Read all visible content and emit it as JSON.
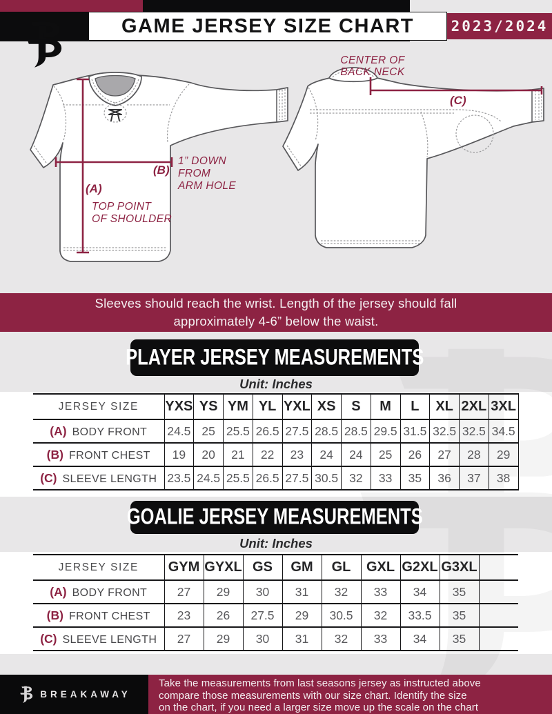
{
  "header": {
    "title": "GAME JERSEY SIZE CHART",
    "season": "2023/2024"
  },
  "diagram": {
    "front": {
      "a_label": "(A)",
      "a_note": [
        "TOP POINT",
        "OF SHOULDER"
      ],
      "b_label": "(B)",
      "b_note": [
        "1” DOWN",
        "FROM",
        "ARM HOLE"
      ]
    },
    "back": {
      "c_label": "(C)",
      "neck_note": [
        "CENTER OF",
        "BACK NECK"
      ]
    }
  },
  "notice": [
    "Sleeves should reach the wrist. Length of the jersey should fall",
    "approximately 4-6” below the waist."
  ],
  "player_section": {
    "title": "PLAYER JERSEY MEASUREMENTS",
    "unit": "Unit: Inches"
  },
  "goalie_section": {
    "title": "GOALIE JERSEY MEASUREMENTS",
    "unit": "Unit: Inches"
  },
  "player_table": {
    "corner_label": "JERSEY SIZE",
    "sizes": [
      "YXS",
      "YS",
      "YM",
      "YL",
      "YXL",
      "XS",
      "S",
      "M",
      "L",
      "XL",
      "2XL",
      "3XL"
    ],
    "rows": [
      {
        "key": "(A)",
        "label": "BODY FRONT",
        "values": [
          "24.5",
          "25",
          "25.5",
          "26.5",
          "27.5",
          "28.5",
          "28.5",
          "29.5",
          "31.5",
          "32.5",
          "32.5",
          "34.5"
        ]
      },
      {
        "key": "(B)",
        "label": "FRONT CHEST",
        "values": [
          "19",
          "20",
          "21",
          "22",
          "23",
          "24",
          "24",
          "25",
          "26",
          "27",
          "28",
          "29"
        ]
      },
      {
        "key": "(C)",
        "label": "SLEEVE LENGTH",
        "values": [
          "23.5",
          "24.5",
          "25.5",
          "26.5",
          "27.5",
          "30.5",
          "32",
          "33",
          "35",
          "36",
          "37",
          "38"
        ]
      }
    ]
  },
  "goalie_table": {
    "corner_label": "JERSEY SIZE",
    "sizes": [
      "GYM",
      "GYXL",
      "GS",
      "GM",
      "GL",
      "GXL",
      "G2XL",
      "G3XL",
      ""
    ],
    "rows": [
      {
        "key": "(A)",
        "label": "BODY FRONT",
        "values": [
          "27",
          "29",
          "30",
          "31",
          "32",
          "33",
          "34",
          "35",
          ""
        ]
      },
      {
        "key": "(B)",
        "label": "FRONT CHEST",
        "values": [
          "23",
          "26",
          "27.5",
          "29",
          "30.5",
          "32",
          "33.5",
          "35",
          ""
        ]
      },
      {
        "key": "(C)",
        "label": "SLEEVE LENGTH",
        "values": [
          "27",
          "29",
          "30",
          "31",
          "32",
          "33",
          "34",
          "35",
          ""
        ]
      }
    ]
  },
  "footer": {
    "brand": "BREAKAWAY",
    "note": [
      "Take the measurements from last seasons jersey as instructed above",
      "compare those measurements  with our size chart. Identify the size",
      "on the chart, if you need a larger size move up the scale on the chart"
    ]
  },
  "colors": {
    "maroon": "#8d2343",
    "black": "#0c0c0d",
    "bg_gray": "#e8e7e8",
    "table_line": "#161618"
  }
}
